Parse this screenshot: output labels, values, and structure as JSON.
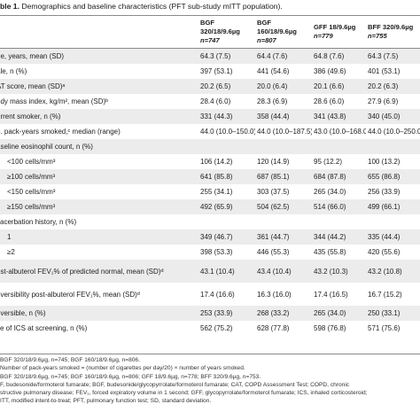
{
  "caption": {
    "label": "ble 1.",
    "text": "Demographics and baseline characteristics (PFT sub-study mITT population)."
  },
  "columns": [
    {
      "line1": "",
      "line2": ""
    },
    {
      "line1": "BGF 320/18/9.6µg",
      "line2": "n=747"
    },
    {
      "line1": "BGF 160/18/9.6µg",
      "line2": "n=807"
    },
    {
      "line1": "GFF 18/9.6µg",
      "line2": "n=779"
    },
    {
      "line1": "BFF 320/9.6µg",
      "line2": "n=755"
    }
  ],
  "rows": [
    {
      "label": "ge, years, mean (SD)",
      "v": [
        "64.3 (7.5)",
        "64.4 (7.6)",
        "64.8 (7.6)",
        "64.3 (7.5)"
      ],
      "shade": true,
      "tall": false,
      "indent": false
    },
    {
      "label": "ale, n (%)",
      "v": [
        "397 (53.1)",
        "441 (54.6)",
        "386 (49.6)",
        "401 (53.1)"
      ],
      "shade": false,
      "tall": false,
      "indent": false
    },
    {
      "label": "AT score, mean (SD)ᵃ",
      "v": [
        "20.2 (6.5)",
        "20.0 (6.4)",
        "20.1 (6.6)",
        "20.2 (6.3)"
      ],
      "shade": true,
      "tall": false,
      "indent": false
    },
    {
      "label": "ody mass index, kg/m², mean (SD)ᵇ",
      "v": [
        "28.4 (6.0)",
        "28.3 (6.9)",
        "28.6 (6.0)",
        "27.9 (6.9)"
      ],
      "shade": false,
      "tall": false,
      "indent": false
    },
    {
      "label": "urrent smoker, n (%)",
      "v": [
        "331 (44.3)",
        "358 (44.4)",
        "341 (43.8)",
        "340 (45.0)"
      ],
      "shade": true,
      "tall": false,
      "indent": false
    },
    {
      "label": "o. pack-years smoked,ᶜ median (range)",
      "v": [
        "44.0 (10.0–150.0)",
        "44.0 (10.0–187.5)",
        "43.0 (10.0–168.0)",
        "44.0 (10.0–250.0)"
      ],
      "shade": false,
      "tall": false,
      "indent": false
    },
    {
      "label": "aseline eosinophil count, n (%)",
      "v": [
        "",
        "",
        "",
        ""
      ],
      "shade": true,
      "tall": false,
      "indent": false
    },
    {
      "label": "<100 cells/mm³",
      "v": [
        "106 (14.2)",
        "120 (14.9)",
        "95 (12.2)",
        "100 (13.2)"
      ],
      "shade": false,
      "tall": false,
      "indent": true
    },
    {
      "label": "≥100 cells/mm³",
      "v": [
        "641 (85.8)",
        "687 (85.1)",
        "684 (87.8)",
        "655 (86.8)"
      ],
      "shade": true,
      "tall": false,
      "indent": true
    },
    {
      "label": "<150 cells/mm³",
      "v": [
        "255 (34.1)",
        "303 (37.5)",
        "265 (34.0)",
        "256 (33.9)"
      ],
      "shade": false,
      "tall": false,
      "indent": true
    },
    {
      "label": "≥150 cells/mm³",
      "v": [
        "492 (65.9)",
        "504 (62.5)",
        "514 (66.0)",
        "499 (66.1)"
      ],
      "shade": true,
      "tall": false,
      "indent": true
    },
    {
      "label": "xacerbation history, n (%)",
      "v": [
        "",
        "",
        "",
        ""
      ],
      "shade": false,
      "tall": false,
      "indent": false
    },
    {
      "label": "1",
      "v": [
        "349 (46.7)",
        "361 (44.7)",
        "344 (44.2)",
        "335 (44.4)"
      ],
      "shade": true,
      "tall": false,
      "indent": true
    },
    {
      "label": "≥2",
      "v": [
        "398 (53.3)",
        "446 (55.3)",
        "435 (55.8)",
        "420 (55.6)"
      ],
      "shade": false,
      "tall": false,
      "indent": true
    },
    {
      "label": "ost-albuterol FEV₁% of predicted normal, mean (SD)ᵈ",
      "v": [
        "43.1 (10.4)",
        "43.4 (10.4)",
        "43.2 (10.3)",
        "43.2 (10.8)"
      ],
      "shade": true,
      "tall": true,
      "indent": false
    },
    {
      "label": "eversibility post-albuterol FEV₁%, mean (SD)ᵈ",
      "v": [
        "17.4 (16.6)",
        "16.3 (16.0)",
        "17.4 (16.5)",
        "16.7 (15.2)"
      ],
      "shade": false,
      "tall": true,
      "indent": false
    },
    {
      "label": "eversible, n (%)",
      "v": [
        "253 (33.9)",
        "268 (33.2)",
        "265 (34.0)",
        "250 (33.1)"
      ],
      "shade": true,
      "tall": false,
      "indent": false
    },
    {
      "label": "se of ICS at screening, n (%)",
      "v": [
        "562 (75.2)",
        "628 (77.8)",
        "598 (76.8)",
        "571 (75.6)"
      ],
      "shade": false,
      "tall": false,
      "indent": false
    }
  ],
  "footnotes": [
    "BGF 320/18/9.6µg, n=745; BGF 160/18/9.6µg, n=806.",
    "Number of pack-years smoked = (number of cigarettes per day/20) × number of years smoked.",
    "BGF 320/18/9.6µg, n=745; BGF 160/18/9.6µg, n=806; GFF 18/9.6µg, n=778; BFF 320/9.6µg, n=753.",
    "F, budesonide/formoterol fumarate; BGF, budesonide/glycopyrrolate/formoterol fumarate; CAT, COPD Assessment Test; COPD, chronic",
    "structive pulmonary disease; FEV₁, forced expiratory volume in 1 second; GFF, glycopyrrolate/formoterol fumarate; ICS, inhaled corticosteroid;",
    "ITT, modified intent-to-treat; PFT, pulmonary function test; SD, standard deviation."
  ]
}
